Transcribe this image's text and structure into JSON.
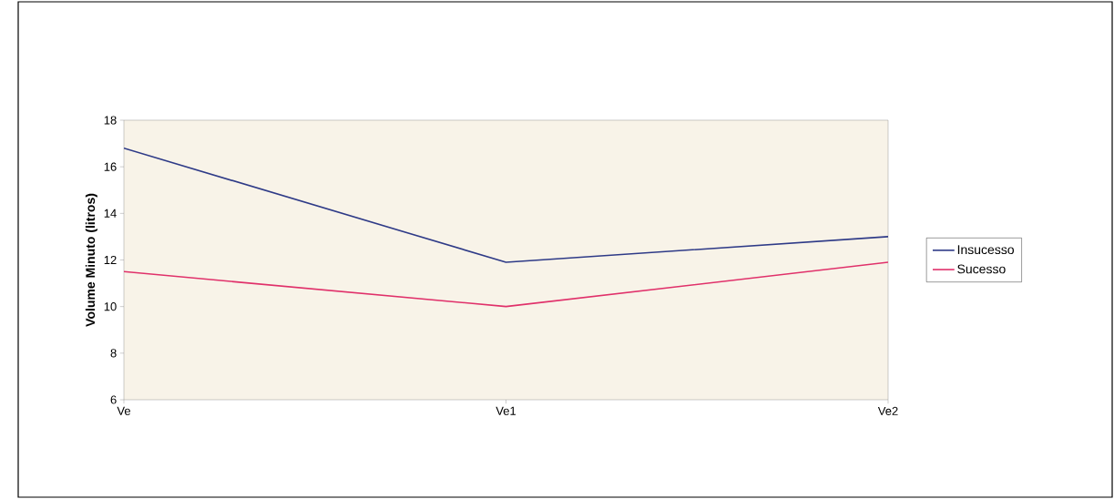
{
  "chart_data": {
    "type": "line",
    "ylabel": "Volume Minuto (litros)",
    "categories": [
      "Ve",
      "Ve1",
      "Ve2"
    ],
    "series": [
      {
        "name": "Insucesso",
        "color": "#2e3a87",
        "values": [
          16.8,
          11.9,
          13.0
        ]
      },
      {
        "name": "Sucesso",
        "color": "#e0306a",
        "values": [
          11.5,
          10.0,
          11.9
        ]
      }
    ],
    "ylim": [
      6,
      18
    ],
    "yticks": [
      6,
      8,
      10,
      12,
      14,
      16,
      18
    ],
    "grid": false,
    "legend": "right",
    "marker": "none",
    "line_style": "solid"
  }
}
